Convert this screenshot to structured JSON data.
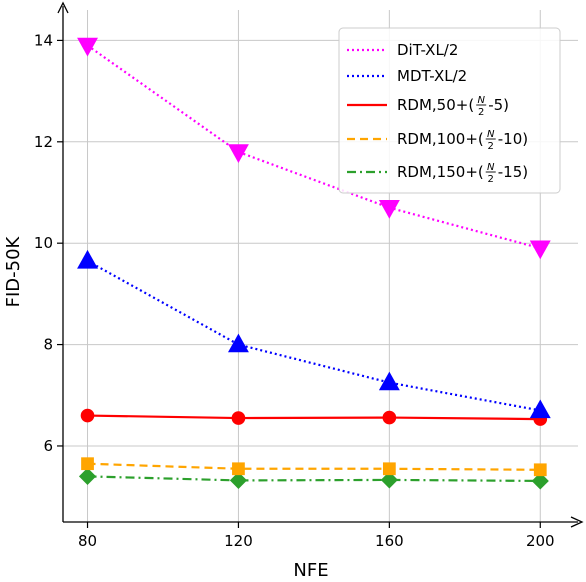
{
  "chart_data": {
    "type": "line",
    "xlabel": "NFE",
    "ylabel": "FID-50K",
    "x": [
      80,
      120,
      160,
      200
    ],
    "x_ticks": [
      "80",
      "120",
      "160",
      "200"
    ],
    "y_ticks": [
      "6",
      "8",
      "10",
      "12",
      "14"
    ],
    "xlim": [
      73.5,
      210
    ],
    "ylim": [
      4.5,
      14.6
    ],
    "grid": true,
    "legend_position": "top-right",
    "series": [
      {
        "name": "DiT-XL/2",
        "legend_main": "DiT-XL/2",
        "legend_suffix": "",
        "values": [
          13.9,
          11.8,
          10.7,
          9.9
        ],
        "color": "#ff00ff",
        "dash": "2,3",
        "marker": "triangle-down"
      },
      {
        "name": "MDT-XL/2",
        "legend_main": "MDT-XL/2",
        "legend_suffix": "",
        "values": [
          9.65,
          8.0,
          7.25,
          6.7
        ],
        "color": "#0000ff",
        "dash": "2,3",
        "marker": "triangle-up"
      },
      {
        "name": "RDM,50+(N/2-5)",
        "legend_main": "RDM,50+(",
        "legend_suffix": "-5)",
        "values": [
          6.6,
          6.55,
          6.56,
          6.53
        ],
        "color": "#ff0000",
        "dash": "",
        "marker": "circle"
      },
      {
        "name": "RDM,100+(N/2-10)",
        "legend_main": "RDM,100+(",
        "legend_suffix": "-10)",
        "values": [
          5.65,
          5.55,
          5.55,
          5.53
        ],
        "color": "#ffa500",
        "dash": "8,5",
        "marker": "square"
      },
      {
        "name": "RDM,150+(N/2-15)",
        "legend_main": "RDM,150+(",
        "legend_suffix": "-15)",
        "values": [
          5.4,
          5.32,
          5.33,
          5.31
        ],
        "color": "#2ca02c",
        "dash": "9,4,2,4",
        "marker": "diamond"
      }
    ],
    "fraction": {
      "numerator": "N",
      "denominator": "2"
    }
  }
}
